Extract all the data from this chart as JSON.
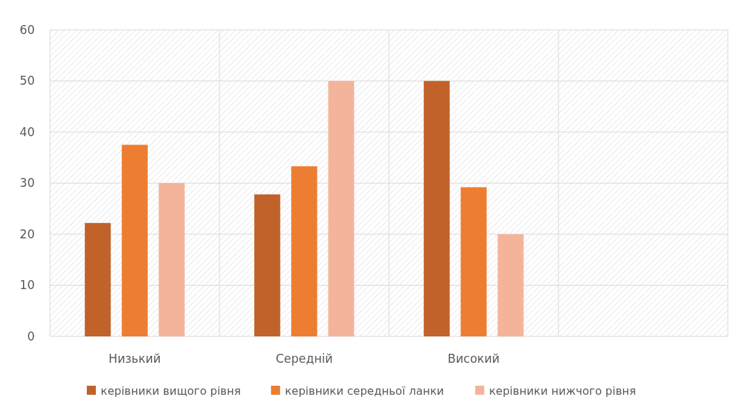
{
  "chart_data": {
    "type": "bar",
    "categories": [
      "Низький",
      "Середній",
      "Високий",
      null
    ],
    "series": [
      {
        "name": "керівники вищого рівня",
        "color": "#c0622a",
        "values": [
          22.2,
          27.8,
          50,
          null
        ]
      },
      {
        "name": "керівники середньої ланки",
        "color": "#ed7d31",
        "values": [
          37.5,
          33.3,
          29.2,
          null
        ]
      },
      {
        "name": "керівники нижчого рівня",
        "color": "#f4b49c",
        "values": [
          30,
          50,
          20,
          null
        ]
      }
    ],
    "ylim": [
      0,
      60
    ],
    "yticks": [
      0,
      10,
      20,
      30,
      40,
      50,
      60
    ],
    "grid": true,
    "legend": "bottom"
  }
}
